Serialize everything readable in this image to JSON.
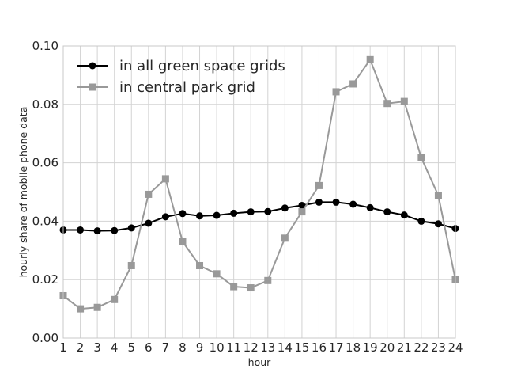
{
  "chart_data": {
    "type": "line",
    "xlabel": "hour",
    "ylabel": "hourly share of mobile phone data",
    "x": [
      1,
      2,
      3,
      4,
      5,
      6,
      7,
      8,
      9,
      10,
      11,
      12,
      13,
      14,
      15,
      16,
      17,
      18,
      19,
      20,
      21,
      22,
      23,
      24
    ],
    "xlim": [
      1,
      24
    ],
    "ylim": [
      0,
      0.1
    ],
    "xticks": [
      "1",
      "2",
      "3",
      "4",
      "5",
      "6",
      "7",
      "8",
      "9",
      "10",
      "11",
      "12",
      "13",
      "14",
      "15",
      "16",
      "17",
      "18",
      "19",
      "20",
      "21",
      "22",
      "23",
      "24"
    ],
    "yticks": [
      "0.00",
      "0.02",
      "0.04",
      "0.06",
      "0.08",
      "0.10"
    ],
    "ytick_values": [
      0,
      0.02,
      0.04,
      0.06,
      0.08,
      0.1
    ],
    "grid": true,
    "legend_position": "top-left",
    "series": [
      {
        "name": "in all green space grids",
        "color": "#000000",
        "marker": "circle",
        "values": [
          0.037,
          0.037,
          0.0367,
          0.0368,
          0.0377,
          0.0393,
          0.0415,
          0.0426,
          0.0418,
          0.042,
          0.0427,
          0.0432,
          0.0433,
          0.0445,
          0.0454,
          0.0465,
          0.0465,
          0.0458,
          0.0446,
          0.0432,
          0.0421,
          0.04,
          0.0391,
          0.0375
        ]
      },
      {
        "name": "in central park grid",
        "color": "#999999",
        "marker": "square",
        "values": [
          0.0145,
          0.01,
          0.0105,
          0.0132,
          0.0248,
          0.0492,
          0.0545,
          0.033,
          0.0248,
          0.022,
          0.0176,
          0.0172,
          0.0197,
          0.0342,
          0.0432,
          0.0522,
          0.0843,
          0.087,
          0.0953,
          0.0803,
          0.081,
          0.0617,
          0.0488,
          0.02
        ]
      }
    ]
  }
}
